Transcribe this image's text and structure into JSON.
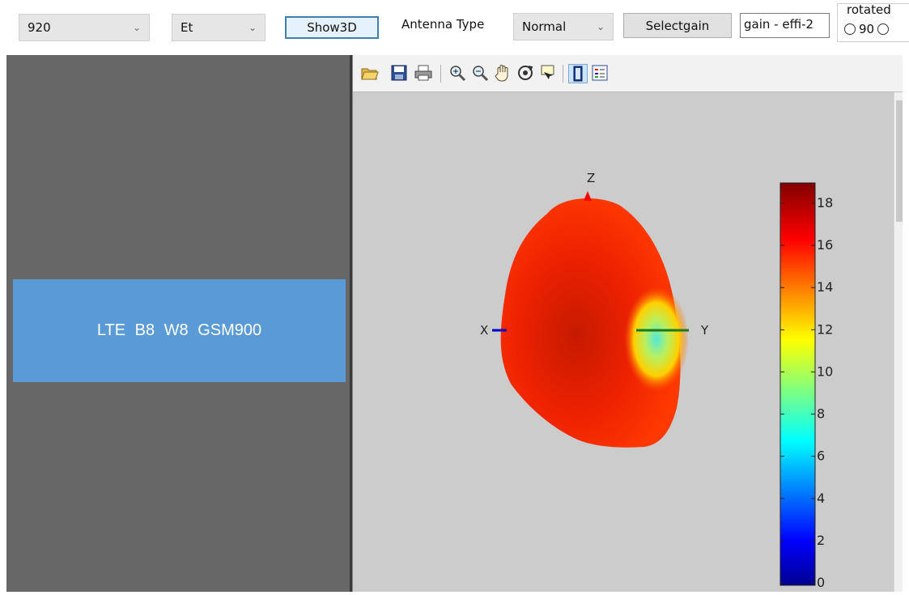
{
  "toolbar": {
    "frequency_select": "920",
    "component_select": "Et",
    "show3d_label": "Show3D",
    "antenna_type_label": "Antenna Type",
    "antenna_type_select": "Normal",
    "selectgain_label": "Selectgain",
    "gain_field_value": "gain - effi-2",
    "rotated_group_title": "rotated",
    "rotated_option_90": "90"
  },
  "left_panel": {
    "band_text": "LTE B8   W8   GSM900"
  },
  "plot": {
    "axis_x_label": "X",
    "axis_y_label": "Y",
    "axis_z_label": "Z",
    "colorbar_ticks": [
      "18",
      "16",
      "14",
      "12",
      "10",
      "8",
      "6",
      "4",
      "2",
      "0"
    ]
  },
  "figure_toolbar_icons": [
    "open-file-icon",
    "save-icon",
    "print-icon",
    "zoom-in-icon",
    "zoom-out-icon",
    "pan-hand-icon",
    "rotate-3d-icon",
    "data-cursor-icon",
    "colorbar-toggle-icon",
    "legend-toggle-icon"
  ],
  "colors": {
    "left_panel_bg": "#676767",
    "band_box_bg": "#5b9bd5",
    "plot_bg": "#cccccc",
    "pattern_main": "#ff2a00",
    "x_axis": "#0000cc",
    "y_axis": "#1a7a1a",
    "z_axis": "#ff0000"
  }
}
